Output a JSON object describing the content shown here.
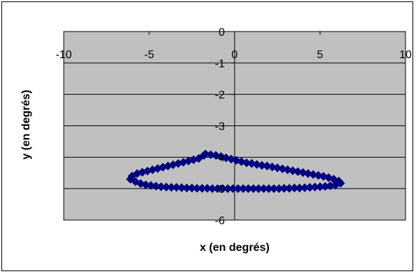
{
  "chart_data": {
    "type": "scatter",
    "xlabel": "x (en degrés)",
    "ylabel": "y (en degrés)",
    "xlim": [
      -10,
      10
    ],
    "ylim": [
      -6,
      0
    ],
    "x_ticks": [
      -10,
      -5,
      0,
      5,
      10
    ],
    "y_ticks": [
      0,
      -1,
      -2,
      -3,
      -4,
      -5,
      -6
    ],
    "x_tick_labels": [
      "-10",
      "-5",
      "0",
      "5",
      "10"
    ],
    "y_tick_labels": [
      "0",
      "-1",
      "-2",
      "-3",
      "-4",
      "-5",
      "-6"
    ],
    "grid": "horizontal",
    "legend": "none",
    "plot_background": "#c0c0c0",
    "marker": "diamond",
    "series_color": "#000080",
    "series": [
      {
        "x": [
          -1.7,
          -1.4,
          -1.1,
          -0.8,
          -0.5,
          -0.2,
          0.1,
          0.4,
          0.7,
          1.0,
          1.3,
          1.6,
          1.9,
          2.2,
          2.5,
          2.8,
          3.1,
          3.4,
          3.7,
          4.0,
          4.3,
          4.6,
          4.9,
          5.2,
          5.5,
          5.8,
          6.1,
          6.2,
          5.9,
          5.6,
          5.3,
          5.0,
          4.7,
          4.4,
          4.1,
          3.8,
          3.5,
          3.2,
          2.9,
          2.6,
          2.3,
          2.0,
          1.7,
          1.4,
          1.1,
          0.8,
          0.5,
          0.2,
          -0.1,
          -0.4,
          -0.7,
          -1.0,
          -1.3,
          -1.6,
          -1.9,
          -2.2,
          -2.5,
          -2.8,
          -3.1,
          -3.4,
          -3.7,
          -4.0,
          -4.3,
          -4.6,
          -4.9,
          -5.2,
          -5.5,
          -5.8,
          -6.1,
          -6.0,
          -5.7,
          -5.4,
          -5.1,
          -4.8,
          -4.5,
          -4.2,
          -3.9,
          -3.6,
          -3.3,
          -3.0,
          -2.7,
          -2.4,
          -2.1,
          -1.8
        ],
        "y": [
          -3.9,
          -3.92,
          -3.94,
          -3.98,
          -4.02,
          -4.06,
          -4.1,
          -4.14,
          -4.18,
          -4.2,
          -4.23,
          -4.26,
          -4.28,
          -4.31,
          -4.34,
          -4.37,
          -4.4,
          -4.43,
          -4.46,
          -4.49,
          -4.52,
          -4.55,
          -4.58,
          -4.61,
          -4.65,
          -4.7,
          -4.76,
          -4.83,
          -4.89,
          -4.91,
          -4.93,
          -4.94,
          -4.95,
          -4.96,
          -4.97,
          -4.98,
          -4.98,
          -4.99,
          -4.99,
          -5.0,
          -5.0,
          -5.0,
          -5.0,
          -5.0,
          -5.0,
          -5.0,
          -5.0,
          -5.0,
          -5.0,
          -5.0,
          -5.0,
          -5.0,
          -5.0,
          -4.99,
          -4.99,
          -4.99,
          -4.98,
          -4.98,
          -4.97,
          -4.96,
          -4.96,
          -4.95,
          -4.94,
          -4.92,
          -4.9,
          -4.88,
          -4.84,
          -4.78,
          -4.7,
          -4.6,
          -4.52,
          -4.48,
          -4.44,
          -4.4,
          -4.36,
          -4.32,
          -4.28,
          -4.24,
          -4.2,
          -4.16,
          -4.12,
          -4.08,
          -4.04,
          -3.94
        ]
      }
    ]
  }
}
